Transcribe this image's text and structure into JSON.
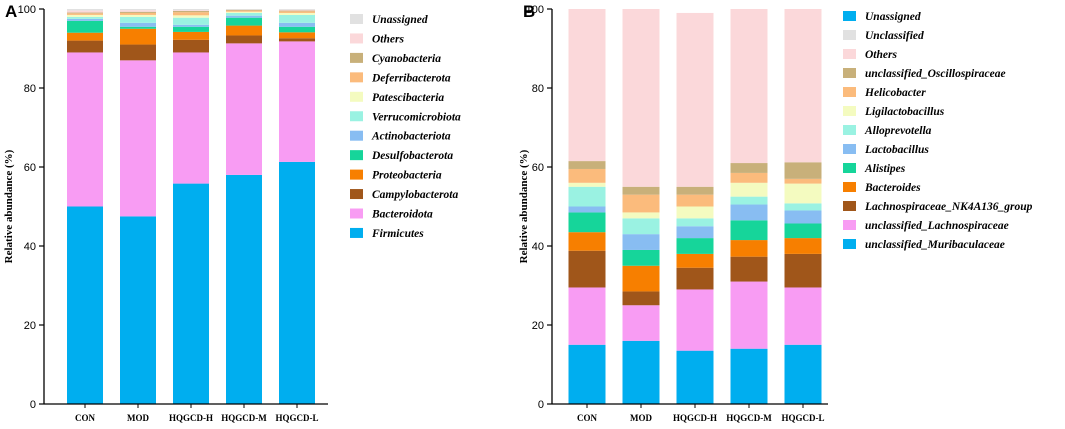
{
  "chart_data": [
    {
      "panel": "A",
      "type": "bar",
      "stacked": true,
      "title": "",
      "xlabel": "",
      "ylabel": "Relative abundance (%)",
      "ylim": [
        0,
        100
      ],
      "yticks": [
        0,
        20,
        40,
        60,
        80,
        100
      ],
      "categories": [
        "CON",
        "MOD",
        "HQGCD-H",
        "HQGCD-M",
        "HQGCD-L"
      ],
      "series": [
        {
          "name": "Firmicutes",
          "color": "#00aeef",
          "values": [
            50.0,
            47.5,
            55.8,
            58.0,
            61.3
          ]
        },
        {
          "name": "Bacteroidota",
          "color": "#f89cf3",
          "values": [
            39.0,
            39.5,
            33.2,
            33.3,
            30.5
          ]
        },
        {
          "name": "Campylobacterota",
          "color": "#a0561a",
          "values": [
            3.0,
            4.0,
            3.2,
            2.0,
            0.8
          ]
        },
        {
          "name": "Proteobacteria",
          "color": "#f77f00",
          "values": [
            2.0,
            4.0,
            2.0,
            2.5,
            1.5
          ]
        },
        {
          "name": "Desulfobacterota",
          "color": "#16d59a",
          "values": [
            3.0,
            0.5,
            1.3,
            2.0,
            1.4
          ]
        },
        {
          "name": "Actinobacteriota",
          "color": "#88bdf2",
          "values": [
            0.5,
            1.0,
            0.5,
            0.5,
            1.0
          ]
        },
        {
          "name": "Verrucomicrobiota",
          "color": "#9af2e2",
          "values": [
            0.5,
            1.5,
            1.8,
            0.7,
            2.0
          ]
        },
        {
          "name": "Patescibacteria",
          "color": "#f4fbc0",
          "values": [
            0.5,
            0.5,
            0.6,
            0.3,
            0.5
          ]
        },
        {
          "name": "Deferribacterota",
          "color": "#fbbb7c",
          "values": [
            0.4,
            0.5,
            0.8,
            0.3,
            0.4
          ]
        },
        {
          "name": "Cyanobacteria",
          "color": "#c8b07a",
          "values": [
            0.2,
            0.3,
            0.3,
            0.2,
            0.2
          ]
        },
        {
          "name": "Others",
          "color": "#fbd8da",
          "values": [
            0.5,
            0.4,
            0.2,
            0.0,
            0.2
          ]
        },
        {
          "name": "Unassigned",
          "color": "#e1e1e1",
          "values": [
            0.4,
            0.3,
            0.3,
            0.2,
            0.2
          ]
        }
      ]
    },
    {
      "panel": "B",
      "type": "bar",
      "stacked": true,
      "title": "",
      "xlabel": "",
      "ylabel": "Relative abundance (%)",
      "ylim": [
        0,
        100
      ],
      "yticks": [
        0,
        20,
        40,
        60,
        80,
        100
      ],
      "categories": [
        "CON",
        "MOD",
        "HQGCD-H",
        "HQGCD-M",
        "HQGCD-L"
      ],
      "series": [
        {
          "name": "unclassified_Muribaculaceae",
          "color": "#00aeef",
          "values": [
            15.0,
            16.0,
            13.5,
            14.0,
            15.0
          ]
        },
        {
          "name": "unclassified_Lachnospiraceae",
          "color": "#f89cf3",
          "values": [
            14.5,
            9.0,
            15.5,
            17.0,
            14.5
          ]
        },
        {
          "name": "Lachnospiraceae_NK4A136_group",
          "color": "#a0561a",
          "values": [
            9.3,
            3.5,
            5.5,
            6.3,
            8.5
          ]
        },
        {
          "name": "Bacteroides",
          "color": "#f77f00",
          "values": [
            4.7,
            6.5,
            3.5,
            4.2,
            4.0
          ]
        },
        {
          "name": "Alistipes",
          "color": "#16d59a",
          "values": [
            5.0,
            4.0,
            4.0,
            5.0,
            3.7
          ]
        },
        {
          "name": "Lactobacillus",
          "color": "#88bdf2",
          "values": [
            1.5,
            4.0,
            3.0,
            4.0,
            3.3
          ]
        },
        {
          "name": "Alloprevotella",
          "color": "#9af2e2",
          "values": [
            5.0,
            4.0,
            2.0,
            2.0,
            1.8
          ]
        },
        {
          "name": "Ligilactobacillus",
          "color": "#f4fbc0",
          "values": [
            1.0,
            1.5,
            3.0,
            3.5,
            5.0
          ]
        },
        {
          "name": "Helicobacter",
          "color": "#fbbb7c",
          "values": [
            3.5,
            4.5,
            3.0,
            2.5,
            1.2
          ]
        },
        {
          "name": "unclassified_Oscillospiraceae",
          "color": "#c8b07a",
          "values": [
            2.0,
            2.0,
            2.0,
            2.5,
            4.2
          ]
        },
        {
          "name": "Others",
          "color": "#fbd8da",
          "values": [
            38.5,
            45.0,
            44.0,
            39.0,
            38.8
          ]
        },
        {
          "name": "Unclassified",
          "color": "#e1e1e1",
          "values": [
            0.0,
            0.0,
            0.0,
            0.0,
            0.0
          ]
        },
        {
          "name": "Unassigned",
          "color": "#00aeef",
          "values": [
            0.0,
            0.0,
            0.0,
            0.0,
            0.0
          ]
        }
      ]
    }
  ]
}
